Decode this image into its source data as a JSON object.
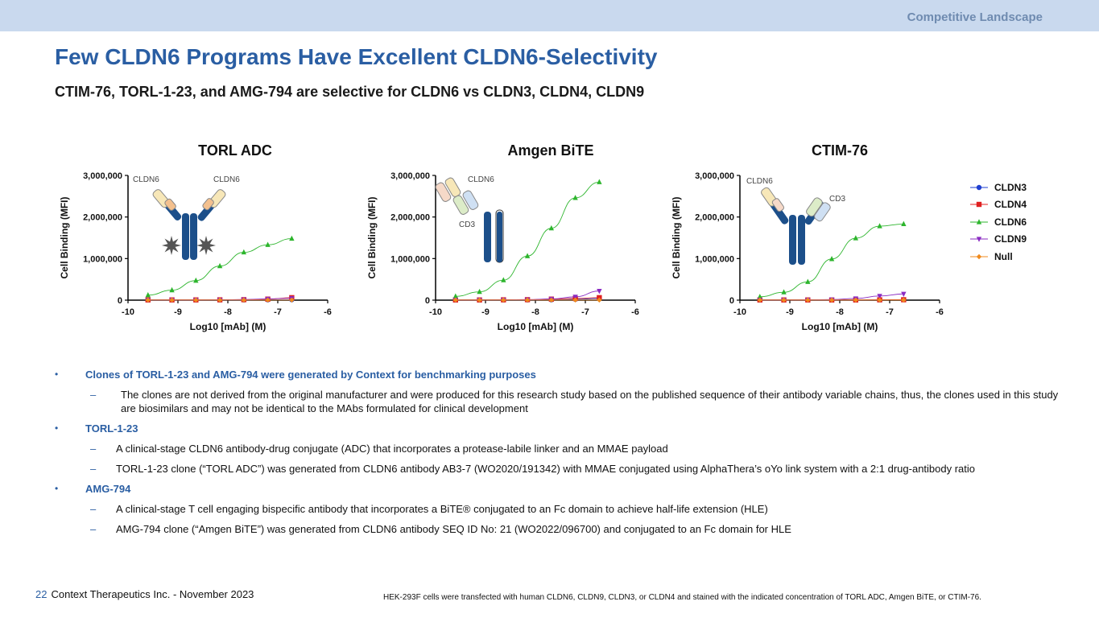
{
  "header": {
    "section": "Competitive Landscape"
  },
  "title": "Few CLDN6 Programs Have Excellent CLDN6-Selectivity",
  "subtitle": "CTIM-76, TORL-1-23, and AMG-794 are selective for CLDN6 vs CLDN3, CLDN4, CLDN9",
  "legend": [
    {
      "name": "CLDN3",
      "color": "#1f3fd0",
      "marker": "circle"
    },
    {
      "name": "CLDN4",
      "color": "#e02020",
      "marker": "square"
    },
    {
      "name": "CLDN6",
      "color": "#2db52d",
      "marker": "triangle-up"
    },
    {
      "name": "CLDN9",
      "color": "#8a2bc2",
      "marker": "triangle-down"
    },
    {
      "name": "Null",
      "color": "#f08a1c",
      "marker": "diamond"
    }
  ],
  "chart_data": [
    {
      "type": "scatter",
      "title": "TORL ADC",
      "xlabel": "Log10 [mAb] (M)",
      "ylabel": "Cell Binding (MFI)",
      "xlim": [
        -10,
        -6
      ],
      "ylim": [
        0,
        3000000
      ],
      "x_ticks": [
        "-10",
        "-9",
        "-8",
        "-7",
        "-6"
      ],
      "y_ticks": [
        "0",
        "1,000,000",
        "2,000,000",
        "3,000,000"
      ],
      "diagram_labels": [
        "CLDN6",
        "CLDN6"
      ],
      "diagram": "adc",
      "x": [
        -9.6,
        -9.12,
        -8.64,
        -8.16,
        -7.68,
        -7.2,
        -6.72
      ],
      "series": [
        {
          "name": "CLDN3",
          "values": [
            5000,
            5000,
            5000,
            5000,
            5000,
            8000,
            10000
          ]
        },
        {
          "name": "CLDN4",
          "values": [
            6000,
            6000,
            6000,
            8000,
            12000,
            25000,
            60000
          ]
        },
        {
          "name": "CLDN6",
          "values": [
            120000,
            240000,
            470000,
            820000,
            1150000,
            1330000,
            1480000
          ]
        },
        {
          "name": "CLDN9",
          "values": [
            5000,
            5000,
            5000,
            8000,
            15000,
            30000,
            45000
          ]
        },
        {
          "name": "Null",
          "values": [
            3000,
            3000,
            3000,
            3000,
            3000,
            3000,
            3000
          ]
        }
      ]
    },
    {
      "type": "scatter",
      "title": "Amgen BiTE",
      "xlabel": "Log10 [mAb] (M)",
      "ylabel": "Cell Binding (MFI)",
      "xlim": [
        -10,
        -6
      ],
      "ylim": [
        0,
        3000000
      ],
      "x_ticks": [
        "-10",
        "-9",
        "-8",
        "-7",
        "-6"
      ],
      "y_ticks": [
        "0",
        "1,000,000",
        "2,000,000",
        "3,000,000"
      ],
      "diagram_labels": [
        "CLDN6",
        "CD3"
      ],
      "diagram": "bite",
      "x": [
        -9.6,
        -9.12,
        -8.64,
        -8.16,
        -7.68,
        -7.2,
        -6.72
      ],
      "series": [
        {
          "name": "CLDN3",
          "values": [
            5000,
            5000,
            5000,
            5000,
            8000,
            20000,
            40000
          ]
        },
        {
          "name": "CLDN4",
          "values": [
            5000,
            5000,
            8000,
            12000,
            25000,
            40000,
            60000
          ]
        },
        {
          "name": "CLDN6",
          "values": [
            90000,
            200000,
            480000,
            1060000,
            1730000,
            2460000,
            2840000
          ]
        },
        {
          "name": "CLDN9",
          "values": [
            5000,
            5000,
            8000,
            12000,
            30000,
            80000,
            220000
          ]
        },
        {
          "name": "Null",
          "values": [
            3000,
            3000,
            3000,
            3000,
            3000,
            3000,
            3000
          ]
        }
      ]
    },
    {
      "type": "scatter",
      "title": "CTIM-76",
      "xlabel": "Log10 [mAb] (M)",
      "ylabel": "Cell Binding (MFI)",
      "xlim": [
        -10,
        -6
      ],
      "ylim": [
        0,
        3000000
      ],
      "x_ticks": [
        "-10",
        "-9",
        "-8",
        "-7",
        "-6"
      ],
      "y_ticks": [
        "0",
        "1,000,000",
        "2,000,000",
        "3,000,000"
      ],
      "diagram_labels": [
        "CLDN6",
        "CD3"
      ],
      "diagram": "bispecific",
      "x": [
        -9.6,
        -9.12,
        -8.64,
        -8.16,
        -7.68,
        -7.2,
        -6.72
      ],
      "series": [
        {
          "name": "CLDN3",
          "values": [
            5000,
            5000,
            5000,
            5000,
            5000,
            8000,
            10000
          ]
        },
        {
          "name": "CLDN4",
          "values": [
            5000,
            5000,
            5000,
            5000,
            5000,
            8000,
            10000
          ]
        },
        {
          "name": "CLDN6",
          "values": [
            80000,
            190000,
            440000,
            990000,
            1490000,
            1780000,
            1830000
          ]
        },
        {
          "name": "CLDN9",
          "values": [
            5000,
            5000,
            8000,
            15000,
            40000,
            100000,
            150000
          ]
        },
        {
          "name": "Null",
          "values": [
            3000,
            3000,
            3000,
            3000,
            3000,
            3000,
            3000
          ]
        }
      ]
    }
  ],
  "bullets": [
    {
      "text": "Clones of TORL-1-23 and AMG-794 were generated by Context for benchmarking purposes",
      "subs": [
        "The clones are not derived from the original manufacturer and were produced for this research study based on the published sequence of their antibody variable chains, thus, the clones used in this study are biosimilars and may not be identical to the MAbs formulated for clinical development"
      ]
    },
    {
      "text": "TORL-1-23",
      "subs": [
        "A clinical-stage CLDN6 antibody-drug conjugate (ADC) that incorporates a protease-labile linker and an MMAE payload",
        "TORL-1-23 clone (“TORL ADC”) was generated from CLDN6 antibody AB3-7 (WO2020/191342) with MMAE conjugated using AlphaThera’s oYo link system with a 2:1 drug-antibody ratio"
      ]
    },
    {
      "text": "AMG-794",
      "subs": [
        "A clinical-stage T cell engaging bispecific antibody that incorporates a BiTE® conjugated to an Fc domain to achieve half-life extension (HLE)",
        "AMG-794 clone (“Amgen BiTE”) was generated from CLDN6 antibody SEQ ID No: 21 (WO2022/096700) and conjugated to an Fc domain for HLE"
      ]
    }
  ],
  "footer": {
    "page_number": "22",
    "company": "Context Therapeutics Inc. - November 2023",
    "note": "HEK-293F cells were transfected with human CLDN6, CLDN9, CLDN3, or CLDN4 and stained with the indicated concentration of TORL ADC, Amgen BiTE, or CTIM-76."
  }
}
